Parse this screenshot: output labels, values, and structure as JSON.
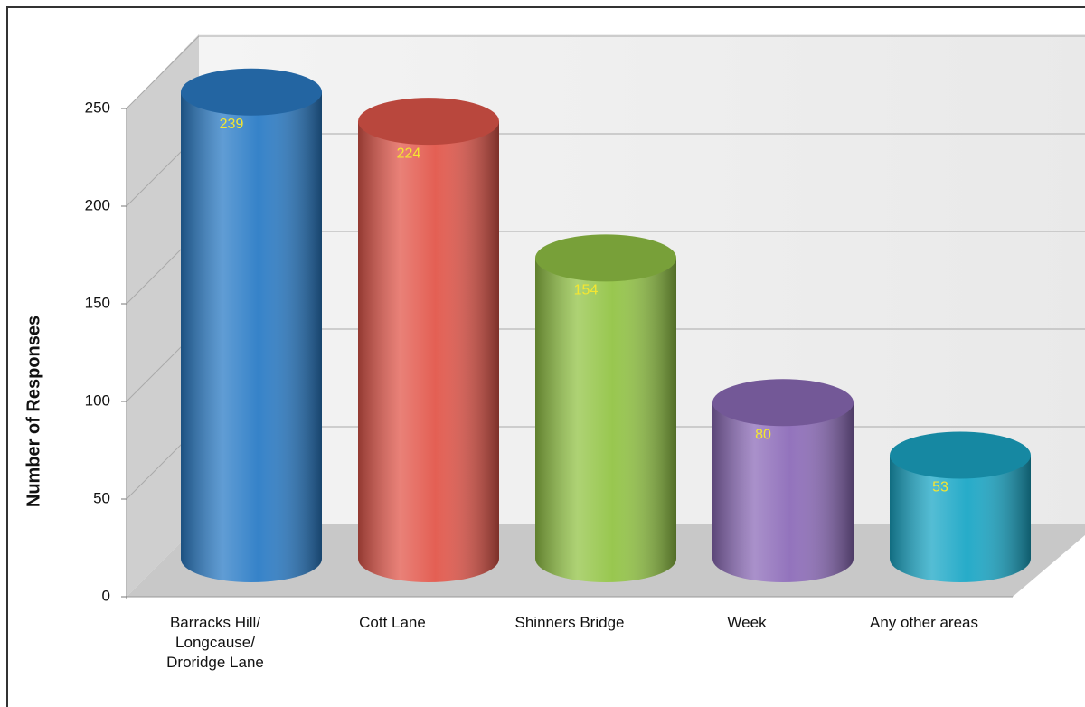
{
  "chart_data": {
    "type": "bar",
    "y_label": "Number of Responses",
    "categories": [
      "Barracks Hill/\nLongcause/\nDroridge Lane",
      "Cott Lane",
      "Shinners Bridge",
      "Week",
      "Any other areas"
    ],
    "values": [
      239,
      224,
      154,
      80,
      53
    ],
    "colors": [
      "#2b7cc6",
      "#e2574b",
      "#93c446",
      "#8d6cb9",
      "#1ba7c6"
    ],
    "ylim": [
      0,
      250
    ],
    "yticks": [
      0,
      50,
      100,
      150,
      200,
      250
    ],
    "grid": true
  }
}
